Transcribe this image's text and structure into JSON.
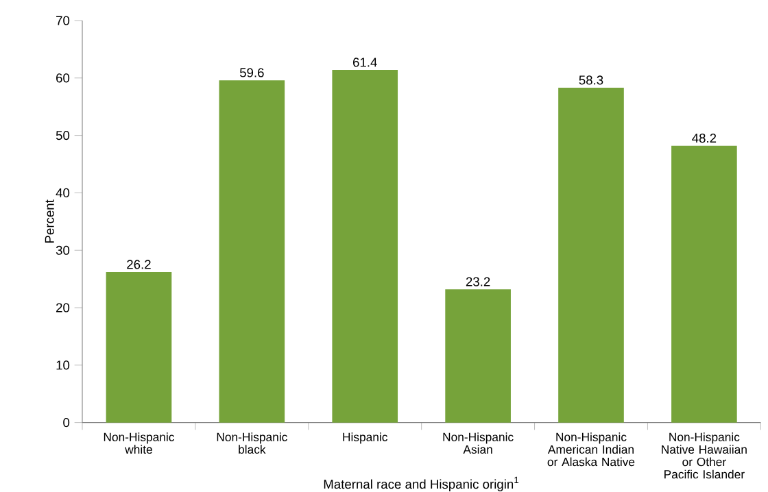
{
  "chart_data": {
    "type": "bar",
    "xlabel": "Maternal race and Hispanic origin$^{1}$",
    "ylabel": "Percent",
    "categories": [
      "Non-Hispanic white",
      "Non-Hispanic black",
      "Hispanic",
      "Non-Hispanic Asian",
      "Non-Hispanic American Indian or Alaska Native",
      "Non-Hispanic Native Hawaiian or Other Pacific Islander"
    ],
    "values": [
      26.2,
      59.6,
      61.4,
      23.2,
      58.3,
      48.2
    ],
    "color": "#76a33a",
    "ylim": [
      0,
      70
    ],
    "yticks": [
      0,
      10,
      20,
      30,
      40,
      50,
      60,
      70
    ],
    "data_labels": true
  }
}
